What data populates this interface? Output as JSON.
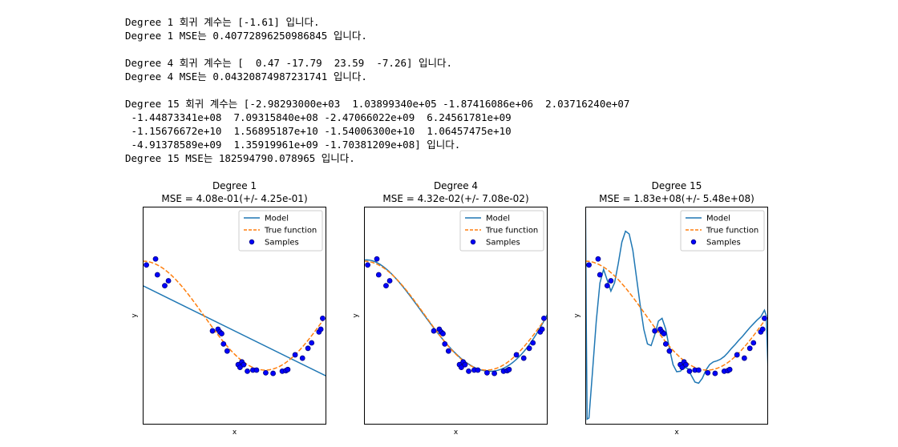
{
  "output": {
    "lines": [
      "Degree 1 회귀 계수는 [-1.61] 입니다.",
      "Degree 1 MSE는 0.40772896250986845 입니다.",
      "",
      "Degree 4 회귀 계수는 [  0.47 -17.79  23.59  -7.26] 입니다.",
      "Degree 4 MSE는 0.04320874987231741 입니다.",
      "",
      "Degree 15 회귀 계수는 [-2.98293000e+03  1.03899340e+05 -1.87416086e+06  2.03716240e+07",
      " -1.44873341e+08  7.09315840e+08 -2.47066022e+09  6.24561781e+09",
      " -1.15676672e+10  1.56895187e+10 -1.54006300e+10  1.06457475e+10",
      " -4.91378589e+09  1.35919961e+09 -1.70381209e+08] 입니다.",
      "Degree 15 MSE는 182594790.078965 입니다."
    ]
  },
  "chart_data": [
    {
      "type": "scatter",
      "title": "Degree 1",
      "subtitle": "MSE = 4.08e-01(+/- 4.25e-01)",
      "xlabel": "x",
      "ylabel": "y",
      "xlim": [
        0,
        1
      ],
      "ylim": [
        -2,
        2
      ],
      "xticks": false,
      "yticks": false,
      "legend": {
        "placement": "top-right",
        "entries": [
          "Model",
          "True function",
          "Samples"
        ]
      },
      "series": [
        {
          "name": "Model",
          "kind": "line",
          "color": "#1f77b4",
          "degree": 1,
          "x": [
            0,
            1
          ],
          "y": [
            0.55,
            -1.11
          ]
        },
        {
          "name": "True function",
          "kind": "dashed-line",
          "color": "#ff7f0e",
          "function": "cos(1.5*pi*x)"
        },
        {
          "name": "Samples",
          "kind": "scatter",
          "color": "#0000ff",
          "edge": "#000080"
        }
      ]
    },
    {
      "type": "scatter",
      "title": "Degree 4",
      "subtitle": "MSE = 4.32e-02(+/- 7.08e-02)",
      "xlabel": "x",
      "ylabel": "y",
      "xlim": [
        0,
        1
      ],
      "ylim": [
        -2,
        2
      ],
      "xticks": false,
      "yticks": false,
      "legend": {
        "placement": "top-right",
        "entries": [
          "Model",
          "True function",
          "Samples"
        ]
      },
      "series": [
        {
          "name": "Model",
          "kind": "line",
          "color": "#1f77b4",
          "degree": 4,
          "coefficients": [
            0.47,
            -17.79,
            23.59,
            -7.26
          ],
          "intercept": 1.02
        },
        {
          "name": "True function",
          "kind": "dashed-line",
          "color": "#ff7f0e",
          "function": "cos(1.5*pi*x)"
        },
        {
          "name": "Samples",
          "kind": "scatter",
          "color": "#0000ff",
          "edge": "#000080"
        }
      ]
    },
    {
      "type": "scatter",
      "title": "Degree 15",
      "subtitle": "MSE = 1.83e+08(+/- 5.48e+08)",
      "xlabel": "x",
      "ylabel": "y",
      "xlim": [
        0,
        1
      ],
      "ylim": [
        -2,
        2
      ],
      "xticks": false,
      "yticks": false,
      "legend": {
        "placement": "top-right",
        "entries": [
          "Model",
          "True function",
          "Samples"
        ]
      },
      "series": [
        {
          "name": "Model",
          "kind": "line",
          "color": "#1f77b4",
          "degree": 15,
          "x": [
            0,
            0.005,
            0.01,
            0.02,
            0.04,
            0.06,
            0.08,
            0.1,
            0.12,
            0.14,
            0.16,
            0.18,
            0.2,
            0.22,
            0.24,
            0.26,
            0.28,
            0.3,
            0.32,
            0.34,
            0.36,
            0.38,
            0.4,
            0.42,
            0.44,
            0.46,
            0.48,
            0.5,
            0.52,
            0.54,
            0.56,
            0.58,
            0.6,
            0.62,
            0.64,
            0.66,
            0.68,
            0.7,
            0.72,
            0.74,
            0.76,
            0.78,
            0.8,
            0.82,
            0.84,
            0.86,
            0.88,
            0.9,
            0.92,
            0.94,
            0.96,
            0.98,
            0.99,
            1.0
          ],
          "y": [
            2.6,
            0.0,
            -1.9,
            -1.88,
            -1.0,
            -0.1,
            0.6,
            0.85,
            0.65,
            0.45,
            0.6,
            0.95,
            1.35,
            1.55,
            1.5,
            1.2,
            0.7,
            0.2,
            -0.25,
            -0.52,
            -0.55,
            -0.35,
            -0.1,
            -0.05,
            -0.25,
            -0.6,
            -0.9,
            -1.03,
            -1.02,
            -0.95,
            -0.97,
            -1.1,
            -1.22,
            -1.24,
            -1.15,
            -1.0,
            -0.9,
            -0.85,
            -0.83,
            -0.8,
            -0.75,
            -0.68,
            -0.6,
            -0.53,
            -0.45,
            -0.38,
            -0.3,
            -0.22,
            -0.15,
            -0.08,
            -0.02,
            0.1,
            0.0,
            -1.05
          ]
        },
        {
          "name": "True function",
          "kind": "dashed-line",
          "color": "#ff7f0e",
          "function": "cos(1.5*pi*x)"
        },
        {
          "name": "Samples",
          "kind": "scatter",
          "color": "#0000ff",
          "edge": "#000080"
        }
      ]
    }
  ],
  "samples": {
    "x": [
      0.02,
      0.07,
      0.08,
      0.12,
      0.14,
      0.38,
      0.41,
      0.42,
      0.43,
      0.44,
      0.46,
      0.52,
      0.53,
      0.54,
      0.55,
      0.57,
      0.6,
      0.62,
      0.67,
      0.71,
      0.76,
      0.78,
      0.79,
      0.83,
      0.87,
      0.9,
      0.92,
      0.96,
      0.97,
      0.98
    ],
    "y": [
      0.93,
      1.04,
      0.75,
      0.55,
      0.64,
      -0.28,
      -0.25,
      -0.3,
      -0.33,
      -0.52,
      -0.65,
      -0.9,
      -0.95,
      -0.85,
      -0.9,
      -1.02,
      -1.0,
      -1.0,
      -1.05,
      -1.06,
      -1.02,
      -1.01,
      -0.99,
      -0.72,
      -0.78,
      -0.6,
      -0.5,
      -0.3,
      -0.25,
      -0.05
    ]
  }
}
